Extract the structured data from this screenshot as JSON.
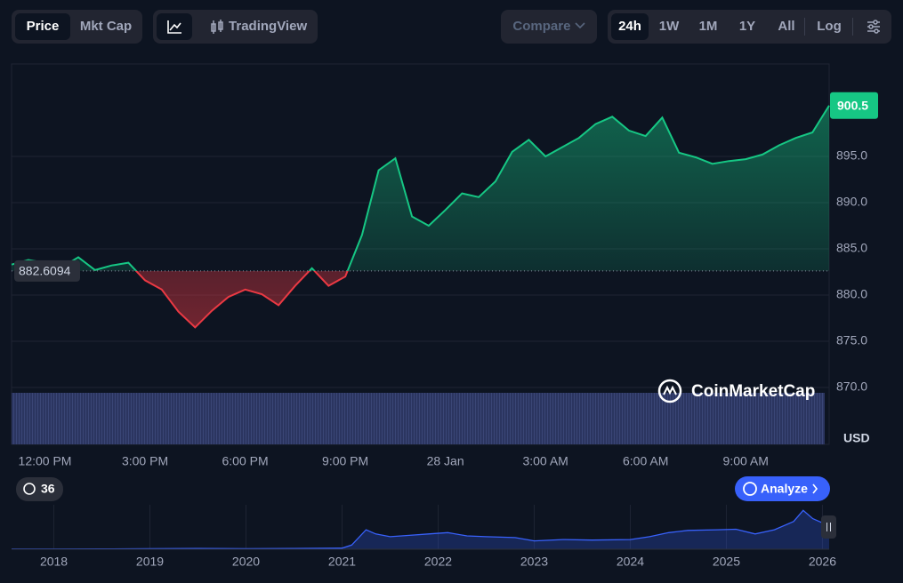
{
  "toolbar": {
    "price": "Price",
    "mkt_cap": "Mkt Cap",
    "tradingview": "TradingView",
    "compare": "Compare",
    "ranges": [
      "24h",
      "1W",
      "1M",
      "1Y",
      "All"
    ],
    "log": "Log"
  },
  "watermark": "CoinMarketCap",
  "history_badge": "36",
  "analyze": "Analyze",
  "chart_data": [
    {
      "type": "line",
      "categories": [
        null,
        null,
        "12:00 PM",
        null,
        null,
        null,
        null,
        null,
        "3:00 PM",
        null,
        null,
        null,
        null,
        null,
        "6:00 PM",
        null,
        null,
        null,
        null,
        null,
        "9:00 PM",
        null,
        null,
        null,
        null,
        null,
        "28 Jan",
        null,
        null,
        null,
        null,
        null,
        "3:00 AM",
        null,
        null,
        null,
        null,
        null,
        "6:00 AM",
        null,
        null,
        null,
        null,
        null,
        "9:00 AM",
        null,
        null,
        null,
        null,
        null
      ],
      "values": [
        883.3,
        883.8,
        883.5,
        883.0,
        884.1,
        882.7,
        883.2,
        883.5,
        881.6,
        880.6,
        878.2,
        876.5,
        878.3,
        879.8,
        880.6,
        880.1,
        878.9,
        881.0,
        882.9,
        881.0,
        882.0,
        886.5,
        893.5,
        894.8,
        888.5,
        887.5,
        889.2,
        891.0,
        890.6,
        892.3,
        895.5,
        896.8,
        895.0,
        896.0,
        897.0,
        898.5,
        899.3,
        897.8,
        897.2,
        899.2,
        895.4,
        894.9,
        894.2,
        894.5,
        894.7,
        895.2,
        896.2,
        897.0,
        897.6,
        900.5
      ],
      "baseline": 882.6094,
      "up_color": "#16c784",
      "down_color": "#ea3943",
      "ylim": [
        865,
        905
      ],
      "yticks": [
        {
          "value": 870,
          "label": "870.0"
        },
        {
          "value": 875,
          "label": "875.0"
        },
        {
          "value": 880,
          "label": "880.0"
        },
        {
          "value": 885,
          "label": "885.0"
        },
        {
          "value": 890,
          "label": "890.0"
        },
        {
          "value": 895,
          "label": "895.0"
        }
      ],
      "y_unit": "USD",
      "grid": true
    },
    {
      "type": "area",
      "color": "#3861fb",
      "x": [
        2017.56,
        2018.0,
        2018.5,
        2019.0,
        2019.5,
        2020.0,
        2020.5,
        2021.0,
        2021.1,
        2021.25,
        2021.35,
        2021.5,
        2021.7,
        2021.9,
        2022.1,
        2022.3,
        2022.5,
        2022.8,
        2023.0,
        2023.3,
        2023.6,
        2024.0,
        2024.2,
        2024.4,
        2024.6,
        2024.9,
        2025.1,
        2025.3,
        2025.5,
        2025.7,
        2025.8,
        2025.9,
        2026.0,
        2026.07
      ],
      "values": [
        5,
        8,
        10,
        20,
        25,
        20,
        25,
        40,
        150,
        700,
        550,
        450,
        500,
        550,
        600,
        480,
        450,
        420,
        300,
        350,
        330,
        350,
        450,
        600,
        680,
        700,
        720,
        550,
        700,
        1000,
        1400,
        1100,
        950,
        900
      ],
      "xlim": [
        2017.56,
        2026.07
      ],
      "xticks": [
        2018,
        2019,
        2020,
        2021,
        2022,
        2023,
        2024,
        2025,
        2026
      ],
      "ylim": [
        0,
        1600
      ]
    }
  ]
}
